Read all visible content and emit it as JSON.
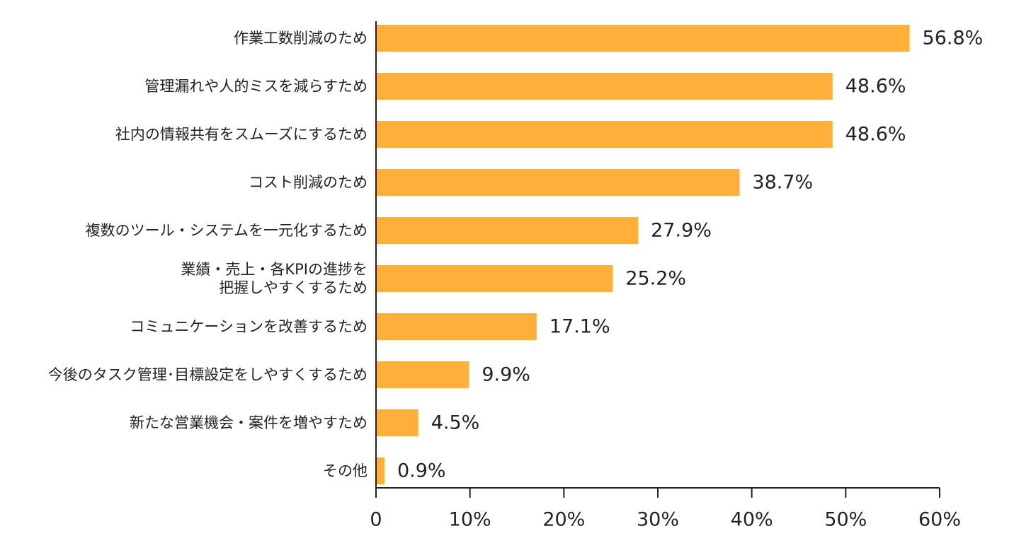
{
  "chart_data": {
    "type": "bar",
    "orientation": "horizontal",
    "categories": [
      "作業工数削減のため",
      "管理漏れや人的ミスを減らすため",
      "社内の情報共有をスムーズにするため",
      "コスト削減のため",
      "複数のツール・システムを一元化するため",
      "業績・売上・各KPIの進捗を\n把握しやすくするため",
      "コミュニケーションを改善するため",
      "今後のタスク管理･目標設定をしやすくするため",
      "新たな営業機会・案件を増やすため",
      "その他"
    ],
    "values": [
      56.8,
      48.6,
      48.6,
      38.7,
      27.9,
      25.2,
      17.1,
      9.9,
      4.5,
      0.9
    ],
    "value_labels": [
      "56.8%",
      "48.6%",
      "48.6%",
      "38.7%",
      "27.9%",
      "25.2%",
      "17.1%",
      "9.9%",
      "4.5%",
      "0.9%"
    ],
    "x_ticks": [
      "0",
      "10%",
      "20%",
      "30%",
      "40%",
      "50%",
      "60%"
    ],
    "xlim": [
      0,
      60
    ],
    "grid": false,
    "legend": "none",
    "bar_color": "#FFAF3A",
    "title": "",
    "xlabel": "",
    "ylabel": ""
  }
}
